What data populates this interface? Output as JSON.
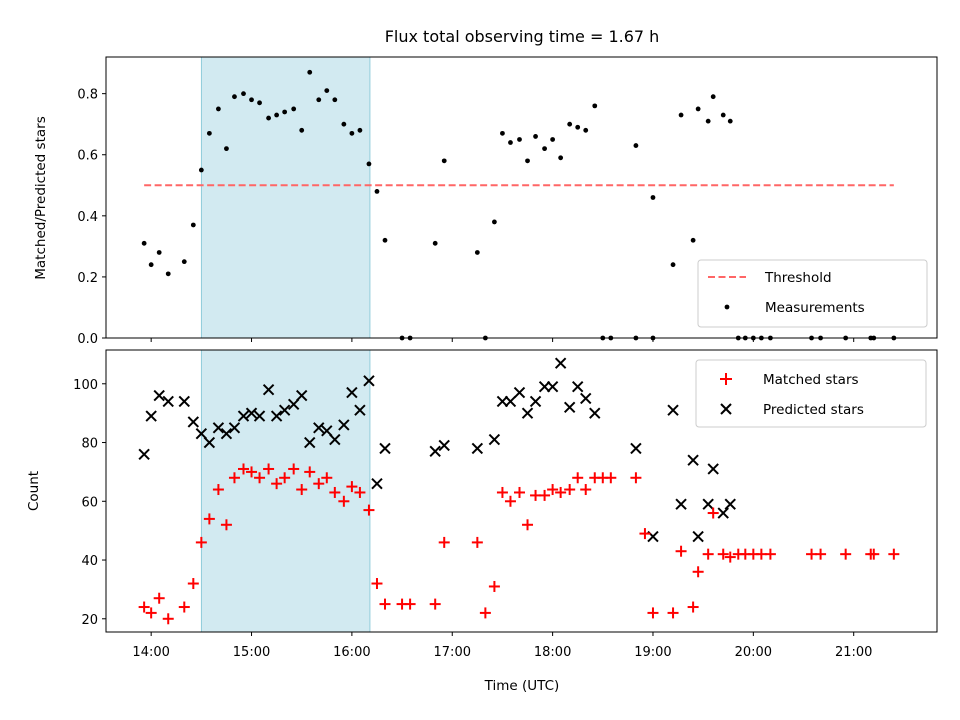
{
  "chart_data": {
    "type": "scatter",
    "title": "Flux total observing time = 1.67 h",
    "xlabel": "Time (UTC)",
    "x_ticks": [
      "14:00",
      "15:00",
      "16:00",
      "17:00",
      "18:00",
      "19:00",
      "20:00",
      "21:00"
    ],
    "xlim_hours": [
      13.55,
      21.83
    ],
    "shaded_region_hours": [
      14.5,
      16.18
    ],
    "shaded_color": "#add8e6",
    "top_panel": {
      "ylabel": "Matched/Predicted stars",
      "ylim": [
        0,
        0.92
      ],
      "y_ticks": [
        "0.0",
        "0.2",
        "0.4",
        "0.6",
        "0.8"
      ],
      "legend": {
        "placement": "lower-right",
        "entries": [
          "Threshold",
          "Measurements"
        ]
      },
      "series": [
        {
          "name": "Threshold",
          "style": "dashed-line",
          "color": "#ff6666",
          "x_hours": [
            13.93,
            21.4
          ],
          "values": [
            0.5,
            0.5
          ]
        },
        {
          "name": "Measurements",
          "style": "dot",
          "color": "#000000",
          "x_hours": [
            13.93,
            14.0,
            14.08,
            14.17,
            14.33,
            14.42,
            14.5,
            14.58,
            14.67,
            14.75,
            14.83,
            14.92,
            15.0,
            15.08,
            15.17,
            15.25,
            15.33,
            15.42,
            15.5,
            15.58,
            15.67,
            15.75,
            15.83,
            15.92,
            16.0,
            16.08,
            16.17,
            16.25,
            16.33,
            16.5,
            16.58,
            16.83,
            16.92,
            17.25,
            17.33,
            17.42,
            17.5,
            17.58,
            17.67,
            17.75,
            17.83,
            17.92,
            18.0,
            18.08,
            18.17,
            18.25,
            18.33,
            18.42,
            18.5,
            18.58,
            18.83,
            18.83,
            19.0,
            19.0,
            19.2,
            19.28,
            19.4,
            19.45,
            19.55,
            19.6,
            19.7,
            19.77,
            19.85,
            19.92,
            20.0,
            20.08,
            20.17,
            20.58,
            20.67,
            20.92,
            21.17,
            21.2,
            21.4
          ],
          "values": [
            0.31,
            0.24,
            0.28,
            0.21,
            0.25,
            0.37,
            0.55,
            0.67,
            0.75,
            0.62,
            0.79,
            0.8,
            0.78,
            0.77,
            0.72,
            0.73,
            0.74,
            0.75,
            0.68,
            0.87,
            0.78,
            0.81,
            0.78,
            0.7,
            0.67,
            0.68,
            0.57,
            0.48,
            0.32,
            0.0,
            0.0,
            0.31,
            0.58,
            0.28,
            0.0,
            0.38,
            0.67,
            0.64,
            0.65,
            0.58,
            0.66,
            0.62,
            0.65,
            0.59,
            0.7,
            0.69,
            0.68,
            0.76,
            0.0,
            0.0,
            0.63,
            0.0,
            0.0,
            0.46,
            0.24,
            0.73,
            0.32,
            0.75,
            0.71,
            0.79,
            0.73,
            0.71,
            0.0,
            0.0,
            0.0,
            0.0,
            0.0,
            0.0,
            0.0,
            0.0,
            0.0,
            0.0,
            0.0
          ]
        }
      ]
    },
    "bottom_panel": {
      "ylabel": "Count",
      "ylim": [
        15.5,
        111.5
      ],
      "y_ticks": [
        "20",
        "40",
        "60",
        "80",
        "100"
      ],
      "legend": {
        "placement": "top-right",
        "entries": [
          "Matched stars",
          "Predicted stars"
        ]
      },
      "series": [
        {
          "name": "Matched stars",
          "style": "plus",
          "color": "#ff0000",
          "x_hours": [
            13.93,
            14.0,
            14.08,
            14.17,
            14.33,
            14.42,
            14.5,
            14.58,
            14.67,
            14.75,
            14.83,
            14.92,
            15.0,
            15.08,
            15.17,
            15.25,
            15.33,
            15.42,
            15.5,
            15.58,
            15.67,
            15.75,
            15.83,
            15.92,
            16.0,
            16.08,
            16.17,
            16.25,
            16.33,
            16.5,
            16.58,
            16.83,
            16.92,
            17.25,
            17.33,
            17.42,
            17.5,
            17.58,
            17.67,
            17.75,
            17.83,
            17.92,
            18.0,
            18.08,
            18.17,
            18.25,
            18.33,
            18.42,
            18.5,
            18.58,
            18.83,
            18.92,
            19.0,
            19.2,
            19.28,
            19.4,
            19.45,
            19.55,
            19.6,
            19.7,
            19.77,
            19.85,
            19.92,
            20.0,
            20.08,
            20.17,
            20.58,
            20.67,
            20.92,
            21.17,
            21.2,
            21.4
          ],
          "values": [
            24,
            22,
            27,
            20,
            24,
            32,
            46,
            54,
            64,
            52,
            68,
            71,
            70,
            68,
            71,
            66,
            68,
            71,
            64,
            70,
            66,
            68,
            63,
            60,
            65,
            63,
            57,
            32,
            25,
            25,
            25,
            25,
            46,
            46,
            22,
            31,
            63,
            60,
            63,
            52,
            62,
            62,
            64,
            63,
            64,
            68,
            64,
            68,
            68,
            68,
            68,
            49,
            22,
            22,
            43,
            24,
            36,
            42,
            56,
            42,
            41,
            42,
            42,
            42,
            42,
            42,
            42,
            42,
            42,
            42,
            42,
            42
          ]
        },
        {
          "name": "Predicted stars",
          "style": "x",
          "color": "#000000",
          "x_hours": [
            13.93,
            14.0,
            14.08,
            14.17,
            14.33,
            14.42,
            14.5,
            14.58,
            14.67,
            14.75,
            14.83,
            14.92,
            15.0,
            15.08,
            15.17,
            15.25,
            15.33,
            15.42,
            15.5,
            15.58,
            15.67,
            15.75,
            15.83,
            15.92,
            16.0,
            16.08,
            16.17,
            16.25,
            16.33,
            16.83,
            16.92,
            17.25,
            17.42,
            17.5,
            17.58,
            17.67,
            17.75,
            17.83,
            17.92,
            18.0,
            18.08,
            18.17,
            18.25,
            18.33,
            18.42,
            18.83,
            19.0,
            19.2,
            19.28,
            19.4,
            19.45,
            19.55,
            19.6,
            19.7,
            19.77
          ],
          "values": [
            76,
            89,
            96,
            94,
            94,
            87,
            83,
            80,
            85,
            83,
            85,
            89,
            90,
            89,
            98,
            89,
            91,
            93,
            96,
            80,
            85,
            84,
            81,
            86,
            97,
            91,
            101,
            66,
            78,
            77,
            79,
            78,
            81,
            94,
            94,
            97,
            90,
            94,
            99,
            99,
            107,
            92,
            99,
            95,
            90,
            78,
            48,
            91,
            59,
            74,
            48,
            59,
            71,
            56,
            59
          ]
        }
      ]
    }
  }
}
